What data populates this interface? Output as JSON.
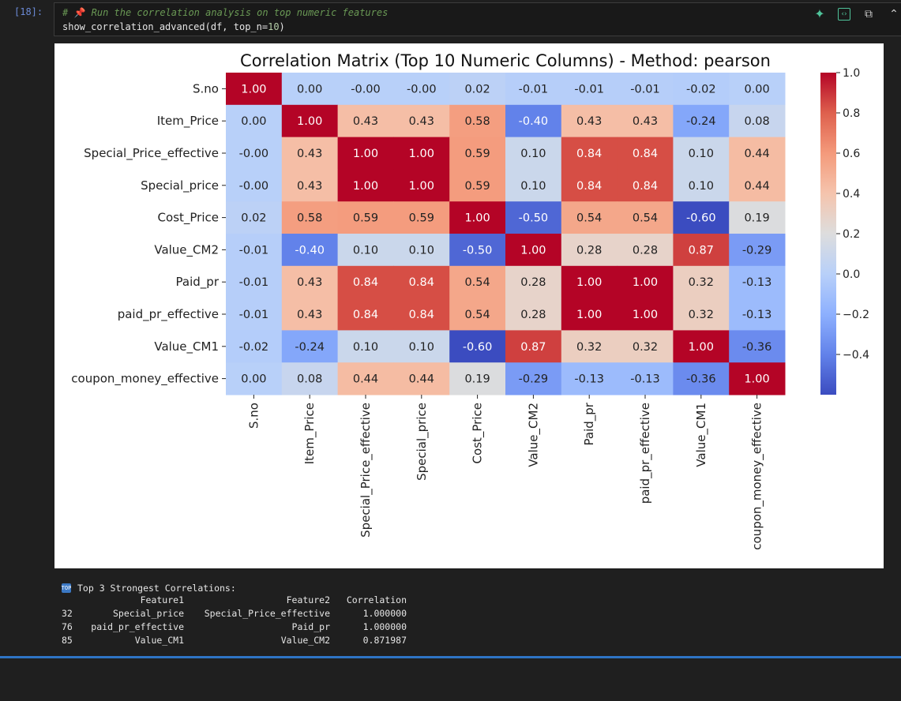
{
  "cell": {
    "prompt": "[18]:",
    "comment_hash": "# ",
    "comment_pin": "📌",
    "comment_text": " Run the correlation analysis on top numeric features",
    "code_prefix": "show_correlation_advanced(df, top_n=",
    "code_num": "10",
    "code_suffix": ")"
  },
  "toolbar": {
    "icons": [
      "sparkle-icon",
      "code-toggle-icon",
      "copy-icon"
    ]
  },
  "chart_data": {
    "type": "heatmap",
    "title": "Correlation Matrix (Top 10 Numeric Columns) - Method: pearson",
    "labels": [
      "S.no",
      "Item_Price",
      "Special_Price_effective",
      "Special_price",
      "Cost_Price",
      "Value_CM2",
      "Paid_pr",
      "paid_pr_effective",
      "Value_CM1",
      "coupon_money_effective"
    ],
    "matrix": [
      [
        1.0,
        0.0,
        -0.0,
        -0.0,
        0.02,
        -0.01,
        -0.01,
        -0.01,
        -0.02,
        0.0
      ],
      [
        0.0,
        1.0,
        0.43,
        0.43,
        0.58,
        -0.4,
        0.43,
        0.43,
        -0.24,
        0.08
      ],
      [
        -0.0,
        0.43,
        1.0,
        1.0,
        0.59,
        0.1,
        0.84,
        0.84,
        0.1,
        0.44
      ],
      [
        -0.0,
        0.43,
        1.0,
        1.0,
        0.59,
        0.1,
        0.84,
        0.84,
        0.1,
        0.44
      ],
      [
        0.02,
        0.58,
        0.59,
        0.59,
        1.0,
        -0.5,
        0.54,
        0.54,
        -0.6,
        0.19
      ],
      [
        -0.01,
        -0.4,
        0.1,
        0.1,
        -0.5,
        1.0,
        0.28,
        0.28,
        0.87,
        -0.29
      ],
      [
        -0.01,
        0.43,
        0.84,
        0.84,
        0.54,
        0.28,
        1.0,
        1.0,
        0.32,
        -0.13
      ],
      [
        -0.01,
        0.43,
        0.84,
        0.84,
        0.54,
        0.28,
        1.0,
        1.0,
        0.32,
        -0.13
      ],
      [
        -0.02,
        -0.24,
        0.1,
        0.1,
        -0.6,
        0.87,
        0.32,
        0.32,
        1.0,
        -0.36
      ],
      [
        0.0,
        0.08,
        0.44,
        0.44,
        0.19,
        -0.29,
        -0.13,
        -0.13,
        -0.36,
        1.0
      ]
    ],
    "display": [
      [
        "1.00",
        "0.00",
        "-0.00",
        "-0.00",
        "0.02",
        "-0.01",
        "-0.01",
        "-0.01",
        "-0.02",
        "0.00"
      ],
      [
        "0.00",
        "1.00",
        "0.43",
        "0.43",
        "0.58",
        "-0.40",
        "0.43",
        "0.43",
        "-0.24",
        "0.08"
      ],
      [
        "-0.00",
        "0.43",
        "1.00",
        "1.00",
        "0.59",
        "0.10",
        "0.84",
        "0.84",
        "0.10",
        "0.44"
      ],
      [
        "-0.00",
        "0.43",
        "1.00",
        "1.00",
        "0.59",
        "0.10",
        "0.84",
        "0.84",
        "0.10",
        "0.44"
      ],
      [
        "0.02",
        "0.58",
        "0.59",
        "0.59",
        "1.00",
        "-0.50",
        "0.54",
        "0.54",
        "-0.60",
        "0.19"
      ],
      [
        "-0.01",
        "-0.40",
        "0.10",
        "0.10",
        "-0.50",
        "1.00",
        "0.28",
        "0.28",
        "0.87",
        "-0.29"
      ],
      [
        "-0.01",
        "0.43",
        "0.84",
        "0.84",
        "0.54",
        "0.28",
        "1.00",
        "1.00",
        "0.32",
        "-0.13"
      ],
      [
        "-0.01",
        "0.43",
        "0.84",
        "0.84",
        "0.54",
        "0.28",
        "1.00",
        "1.00",
        "0.32",
        "-0.13"
      ],
      [
        "-0.02",
        "-0.24",
        "0.10",
        "0.10",
        "-0.60",
        "0.87",
        "0.32",
        "0.32",
        "1.00",
        "-0.36"
      ],
      [
        "0.00",
        "0.08",
        "0.44",
        "0.44",
        "0.19",
        "-0.29",
        "-0.13",
        "-0.13",
        "-0.36",
        "1.00"
      ]
    ],
    "colormap": "coolwarm",
    "colorbar": {
      "vmin": -0.6,
      "vmax": 1.0,
      "ticks": [
        1.0,
        0.8,
        0.6,
        0.4,
        0.2,
        0.0,
        -0.2,
        -0.4
      ],
      "tick_labels": [
        "1.0",
        "0.8",
        "0.6",
        "0.4",
        "0.2",
        "0.0",
        "−0.2",
        "−0.4"
      ]
    }
  },
  "output": {
    "heading": "Top 3 Strongest Correlations:",
    "heading_icon": "top-icon",
    "columns": [
      "Feature1",
      "Feature2",
      "Correlation"
    ],
    "rows": [
      {
        "index": "32",
        "f1": "Special_price",
        "f2": "Special_Price_effective",
        "corr": "1.000000"
      },
      {
        "index": "76",
        "f1": "paid_pr_effective",
        "f2": "Paid_pr",
        "corr": "1.000000"
      },
      {
        "index": "85",
        "f1": "Value_CM1",
        "f2": "Value_CM2",
        "corr": "0.871987"
      }
    ]
  }
}
